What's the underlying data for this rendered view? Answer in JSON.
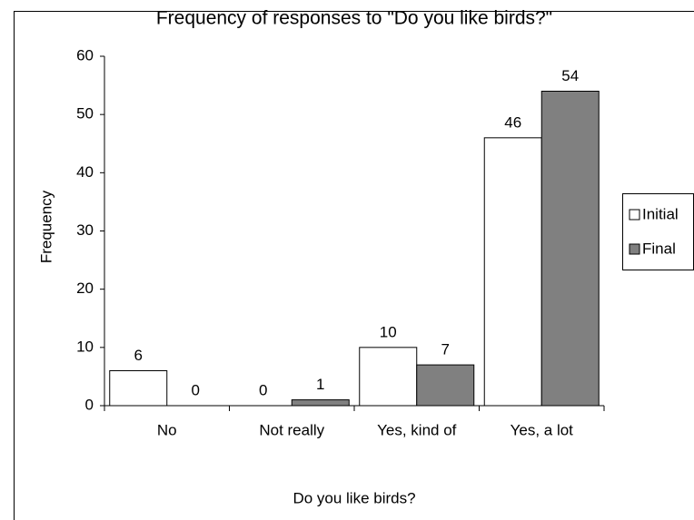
{
  "chart_data": {
    "type": "bar",
    "title": "Frequency of responses to \"Do you like birds?\"",
    "x_label": "Do you like birds?",
    "y_label": "Frequency",
    "categories": [
      "No",
      "Not really",
      "Yes, kind of",
      "Yes, a lot"
    ],
    "series": [
      {
        "name": "Initial",
        "color": "#ffffff",
        "values": [
          6,
          0,
          10,
          46
        ]
      },
      {
        "name": "Final",
        "color": "#808080",
        "values": [
          0,
          1,
          7,
          54
        ]
      }
    ],
    "ylim": [
      0,
      60
    ],
    "yticks": [
      0,
      10,
      20,
      30,
      40,
      50,
      60
    ],
    "grid": false,
    "legend": "right"
  }
}
